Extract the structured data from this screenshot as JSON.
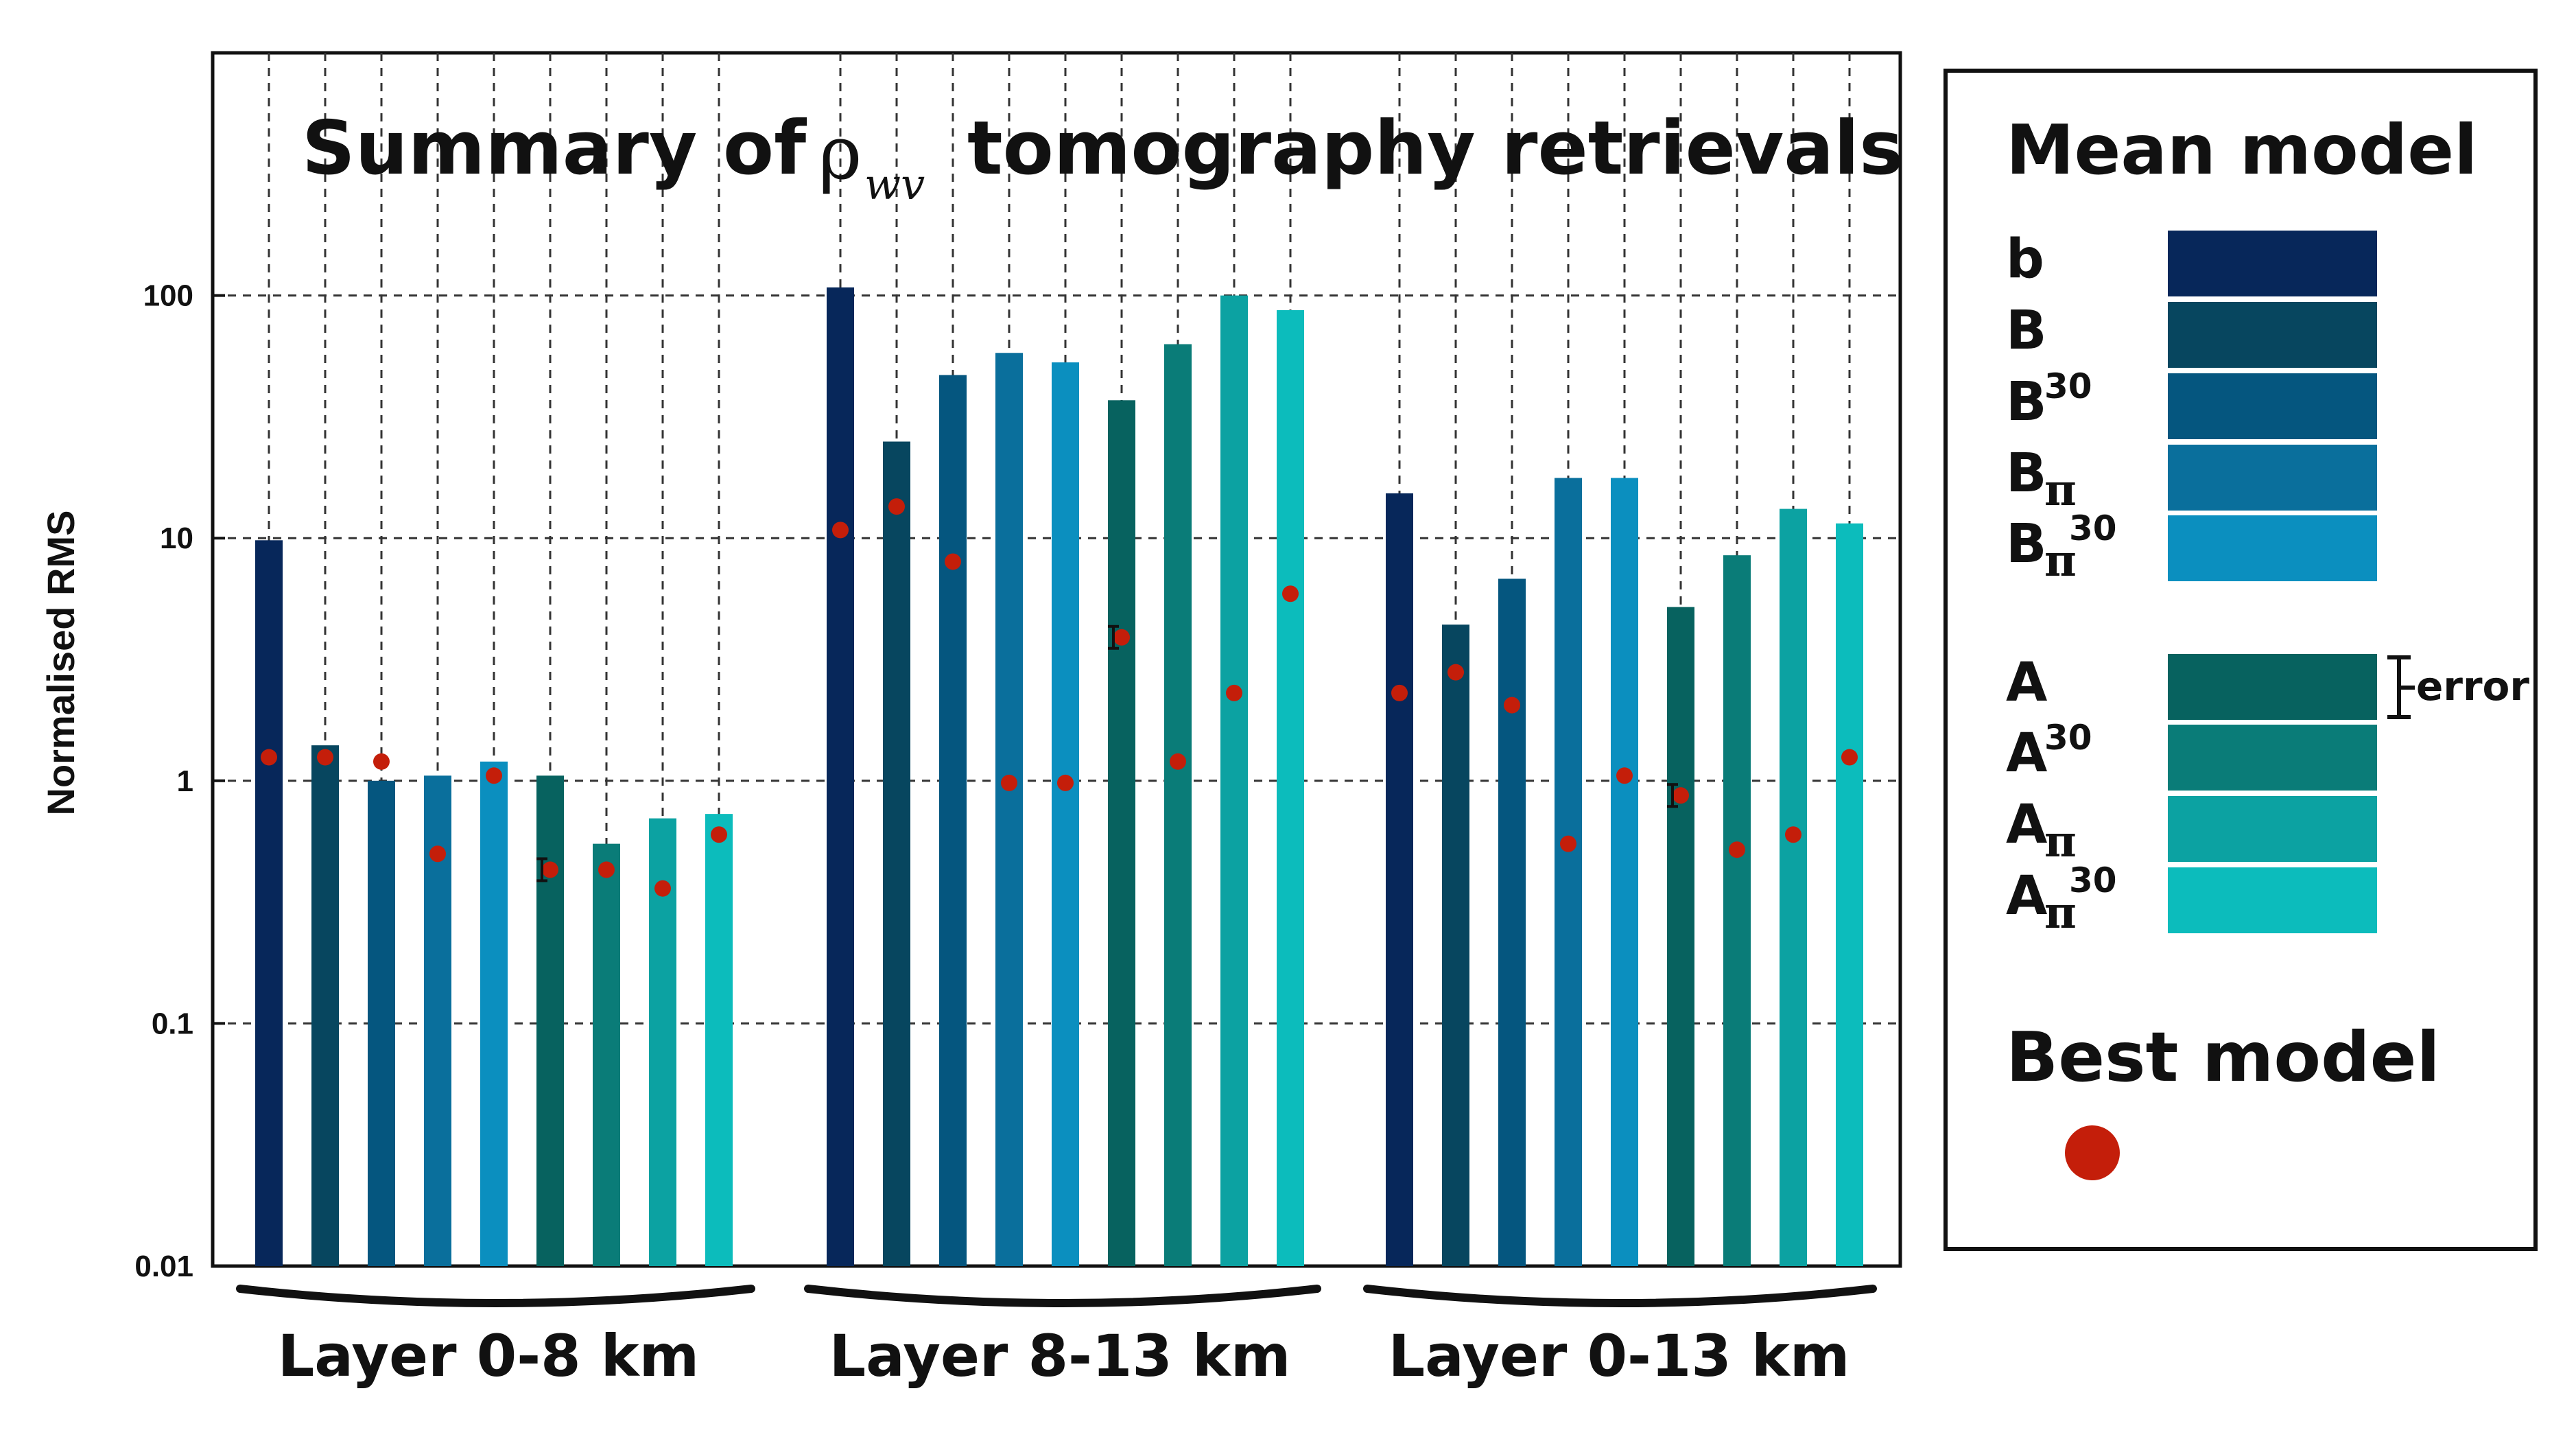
{
  "chart_data": {
    "type": "bar",
    "scale": "log",
    "title": {
      "prefix": "Summary of",
      "symbol": "ρ",
      "symbol_subscript": "wv",
      "suffix": "tomography retrievals"
    },
    "ylabel": "Normalised RMS",
    "ylim": [
      0.01,
      1000
    ],
    "yticks": [
      {
        "value": 0.01,
        "label": "0.01"
      },
      {
        "value": 0.1,
        "label": "0.1"
      },
      {
        "value": 1,
        "label": "1"
      },
      {
        "value": 10,
        "label": "10"
      },
      {
        "value": 100,
        "label": "100"
      }
    ],
    "grid": true,
    "series": [
      {
        "name": "b",
        "base": "b",
        "sub": "",
        "sup": "",
        "color": "#07275a"
      },
      {
        "name": "B",
        "base": "B",
        "sub": "",
        "sup": "",
        "color": "#07465f"
      },
      {
        "name": "B^30",
        "base": "B",
        "sub": "",
        "sup": "30",
        "color": "#05567f"
      },
      {
        "name": "B_π",
        "base": "B",
        "sub": "π",
        "sup": "",
        "color": "#0a6f9c"
      },
      {
        "name": "B_π^30",
        "base": "B",
        "sub": "π",
        "sup": "30",
        "color": "#0b8fbf"
      },
      {
        "name": "A",
        "base": "A",
        "sub": "",
        "sup": "",
        "color": "#07625f"
      },
      {
        "name": "A^30",
        "base": "A",
        "sub": "",
        "sup": "30",
        "color": "#0a7c78"
      },
      {
        "name": "A_π",
        "base": "A",
        "sub": "π",
        "sup": "",
        "color": "#0ca2a2"
      },
      {
        "name": "A_π^30",
        "base": "A",
        "sub": "π",
        "sup": "30",
        "color": "#0cbcbc"
      }
    ],
    "groups": [
      {
        "label": "Layer 0-8 km",
        "mean": [
          9.8,
          1.4,
          1.0,
          1.05,
          1.2,
          1.05,
          0.55,
          0.7,
          0.73
        ],
        "best": [
          1.25,
          1.25,
          1.2,
          0.5,
          1.05,
          0.43,
          0.43,
          0.36,
          0.6
        ],
        "error_index": 5
      },
      {
        "label": "Layer 8-13 km",
        "mean": [
          108,
          25,
          47,
          58,
          53,
          37,
          63,
          100,
          87
        ],
        "best": [
          10.8,
          13.5,
          8.0,
          0.98,
          0.98,
          3.9,
          1.2,
          2.3,
          5.9
        ],
        "error_index": 5
      },
      {
        "label": "Layer 0-13 km",
        "mean": [
          15.3,
          4.4,
          6.8,
          17.7,
          17.7,
          5.2,
          8.5,
          13.2,
          11.5
        ],
        "best": [
          2.3,
          2.8,
          2.05,
          0.55,
          1.05,
          0.87,
          0.52,
          0.6,
          1.25
        ],
        "error_index": 5
      }
    ],
    "legend": {
      "mean_title": "Mean model",
      "best_title": "Best model",
      "error_label": "error",
      "best_color": "#c41e0a",
      "placement": "right"
    }
  }
}
